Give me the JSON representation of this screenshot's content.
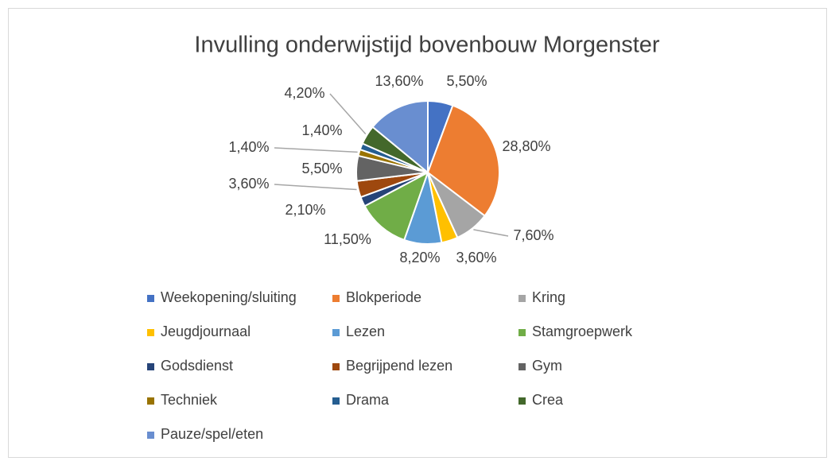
{
  "chart_data": {
    "type": "pie",
    "title": "Invulling onderwijstijd bovenbouw Morgenster",
    "categories": [
      "Weekopening/sluiting",
      "Blokperiode",
      "Kring",
      "Jeugdjournaal",
      "Lezen",
      "Stamgroepwerk",
      "Godsdienst",
      "Begrijpend lezen",
      "Gym",
      "Techniek",
      "Drama",
      "Crea",
      "Pauze/spel/eten"
    ],
    "values": [
      5.5,
      28.8,
      7.6,
      3.6,
      8.2,
      11.5,
      2.1,
      3.6,
      5.5,
      1.4,
      1.4,
      4.2,
      13.6
    ],
    "value_labels": [
      "5,50%",
      "28,80%",
      "7,60%",
      "3,60%",
      "8,20%",
      "11,50%",
      "2,10%",
      "3,60%",
      "5,50%",
      "1,40%",
      "1,40%",
      "4,20%",
      "13,60%"
    ],
    "colors": [
      "#4472c4",
      "#ed7d31",
      "#a5a5a5",
      "#ffc000",
      "#5b9bd5",
      "#70ad47",
      "#264478",
      "#9e480e",
      "#636363",
      "#997300",
      "#255e91",
      "#43682b",
      "#698ed0"
    ],
    "legend": "bottom"
  }
}
